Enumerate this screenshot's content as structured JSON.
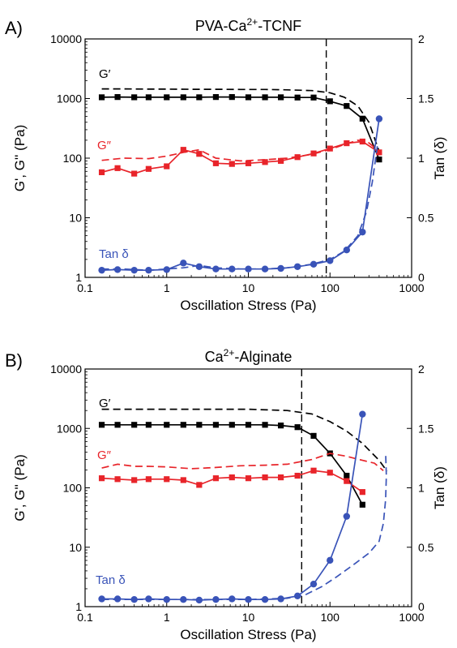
{
  "colors": {
    "gp": "#000000",
    "gpp": "#e8242a",
    "tan": "#3953b8",
    "vline": "#000000"
  },
  "chart_data": [
    {
      "type": "line",
      "panel_label": "A)",
      "title": "PVA-Ca",
      "title_sup": "2+",
      "title_suffix": "-TCNF",
      "xlabel": "Oscillation Stress (Pa)",
      "ylabel": "G', G'' (Pa)",
      "y2label": "Tan (δ)",
      "xscale": "log",
      "yscale": "log",
      "xlim": [
        0.1,
        1000
      ],
      "ylim": [
        1,
        10000
      ],
      "y2lim": [
        0,
        2
      ],
      "xticks": [
        "0.1",
        "1",
        "10",
        "100",
        "1000"
      ],
      "yticks": [
        "1",
        "10",
        "100",
        "1000",
        "10000"
      ],
      "y2ticks": [
        "0",
        "0.5",
        "1",
        "1.5",
        "2"
      ],
      "vline_x": 90,
      "series_labels": {
        "gp": "G′",
        "gpp": "G″",
        "tan": "Tan δ"
      },
      "series": [
        {
          "key": "gp",
          "axis": "left",
          "style": "solid-marker",
          "marker": "square",
          "x": [
            0.16,
            0.25,
            0.4,
            0.6,
            1,
            1.6,
            2.5,
            4,
            6.3,
            10,
            16,
            25,
            40,
            63,
            100,
            160,
            250,
            400
          ],
          "y": [
            1050,
            1060,
            1050,
            1050,
            1050,
            1050,
            1050,
            1060,
            1060,
            1050,
            1050,
            1050,
            1040,
            1040,
            900,
            750,
            460,
            95
          ]
        },
        {
          "key": "gp",
          "axis": "left",
          "style": "dashed",
          "x": [
            0.16,
            0.3,
            0.6,
            1,
            2,
            4,
            8,
            16,
            30,
            60,
            100,
            150,
            220,
            300,
            400
          ],
          "y": [
            1450,
            1450,
            1440,
            1440,
            1430,
            1430,
            1420,
            1420,
            1400,
            1360,
            1250,
            1050,
            750,
            400,
            130
          ]
        },
        {
          "key": "gpp",
          "axis": "left",
          "style": "solid-marker",
          "marker": "square",
          "x": [
            0.16,
            0.25,
            0.4,
            0.6,
            1,
            1.6,
            2.5,
            4,
            6.3,
            10,
            16,
            25,
            40,
            63,
            100,
            160,
            250,
            400
          ],
          "y": [
            58,
            68,
            55,
            66,
            73,
            138,
            118,
            82,
            80,
            82,
            86,
            90,
            104,
            120,
            145,
            178,
            190,
            125
          ]
        },
        {
          "key": "gpp",
          "axis": "left",
          "style": "dashed",
          "x": [
            0.16,
            0.3,
            0.6,
            1,
            1.6,
            2.5,
            4,
            8,
            16,
            30,
            60,
            100,
            150,
            220,
            300,
            400
          ],
          "y": [
            92,
            100,
            98,
            108,
            125,
            138,
            100,
            90,
            94,
            100,
            116,
            140,
            170,
            200,
            180,
            130
          ]
        },
        {
          "key": "tan",
          "axis": "right",
          "style": "solid-marker",
          "marker": "circle",
          "x": [
            0.16,
            0.25,
            0.4,
            0.6,
            1,
            1.6,
            2.5,
            4,
            6.3,
            10,
            16,
            25,
            40,
            63,
            100,
            160,
            250,
            400
          ],
          "y": [
            0.06,
            0.065,
            0.06,
            0.06,
            0.065,
            0.12,
            0.09,
            0.07,
            0.07,
            0.07,
            0.07,
            0.075,
            0.09,
            0.11,
            0.14,
            0.23,
            0.38,
            1.33
          ]
        },
        {
          "key": "tan",
          "axis": "right",
          "style": "dashed",
          "x": [
            0.16,
            0.3,
            0.6,
            1,
            1.6,
            2.5,
            4,
            8,
            16,
            30,
            60,
            100,
            150,
            220,
            280,
            330,
            380
          ],
          "y": [
            0.07,
            0.07,
            0.06,
            0.07,
            0.08,
            0.1,
            0.08,
            0.07,
            0.07,
            0.08,
            0.11,
            0.15,
            0.22,
            0.35,
            0.55,
            0.8,
            1.1
          ]
        }
      ],
      "annotations": []
    },
    {
      "type": "line",
      "panel_label": "B)",
      "title": "Ca",
      "title_sup": "2+",
      "title_suffix": "-Alginate",
      "xlabel": "Oscillation Stress (Pa)",
      "ylabel": "G', G'' (Pa)",
      "y2label": "Tan (δ)",
      "xscale": "log",
      "yscale": "log",
      "xlim": [
        0.1,
        1000
      ],
      "ylim": [
        1,
        10000
      ],
      "y2lim": [
        0,
        2
      ],
      "xticks": [
        "0.1",
        "1",
        "10",
        "100",
        "1000"
      ],
      "yticks": [
        "1",
        "10",
        "100",
        "1000",
        "10000"
      ],
      "y2ticks": [
        "0",
        "0.5",
        "1",
        "1.5",
        "2"
      ],
      "vline_x": 45,
      "series_labels": {
        "gp": "G′",
        "gpp": "G″",
        "tan": "Tan δ"
      },
      "series": [
        {
          "key": "gp",
          "axis": "left",
          "style": "solid-marker",
          "marker": "square",
          "x": [
            0.16,
            0.25,
            0.4,
            0.6,
            1,
            1.6,
            2.5,
            4,
            6.3,
            10,
            16,
            25,
            40,
            63,
            100,
            160,
            250
          ],
          "y": [
            1150,
            1150,
            1150,
            1150,
            1150,
            1150,
            1150,
            1150,
            1150,
            1150,
            1150,
            1120,
            1050,
            750,
            380,
            160,
            52
          ]
        },
        {
          "key": "gp",
          "axis": "left",
          "style": "dashed",
          "x": [
            0.16,
            0.5,
            1,
            3,
            10,
            30,
            60,
            100,
            160,
            250,
            400,
            500
          ],
          "y": [
            2100,
            2100,
            2100,
            2100,
            2100,
            2000,
            1750,
            1300,
            900,
            560,
            290,
            190
          ]
        },
        {
          "key": "gpp",
          "axis": "left",
          "style": "solid-marker",
          "marker": "square",
          "x": [
            0.16,
            0.25,
            0.4,
            0.6,
            1,
            1.6,
            2.5,
            4,
            6.3,
            10,
            16,
            25,
            40,
            63,
            100,
            160,
            250
          ],
          "y": [
            145,
            140,
            135,
            140,
            140,
            135,
            112,
            145,
            150,
            145,
            150,
            150,
            160,
            195,
            180,
            130,
            85
          ]
        },
        {
          "key": "gpp",
          "axis": "left",
          "style": "dashed",
          "x": [
            0.16,
            0.25,
            0.4,
            0.6,
            1,
            2,
            4,
            8,
            16,
            30,
            60,
            100,
            160,
            250,
            350,
            450
          ],
          "y": [
            215,
            250,
            230,
            230,
            225,
            210,
            220,
            235,
            240,
            250,
            300,
            380,
            340,
            290,
            260,
            195
          ]
        },
        {
          "key": "tan",
          "axis": "right",
          "style": "solid-marker",
          "marker": "circle",
          "x": [
            0.16,
            0.25,
            0.4,
            0.6,
            1,
            1.6,
            2.5,
            4,
            6.3,
            10,
            16,
            25,
            40,
            63,
            100,
            160,
            250
          ],
          "y": [
            0.065,
            0.065,
            0.06,
            0.065,
            0.06,
            0.06,
            0.055,
            0.06,
            0.065,
            0.06,
            0.06,
            0.065,
            0.09,
            0.19,
            0.39,
            0.76,
            1.62
          ]
        },
        {
          "key": "tan",
          "axis": "right",
          "style": "dashed",
          "x": [
            0.16,
            0.5,
            1,
            3,
            10,
            30,
            50,
            80,
            120,
            200,
            300,
            400,
            450,
            480,
            490,
            480
          ],
          "y": [
            0.06,
            0.06,
            0.06,
            0.06,
            0.06,
            0.07,
            0.1,
            0.17,
            0.25,
            0.36,
            0.45,
            0.55,
            0.7,
            0.9,
            1.1,
            1.3
          ]
        }
      ],
      "annotations": []
    }
  ]
}
